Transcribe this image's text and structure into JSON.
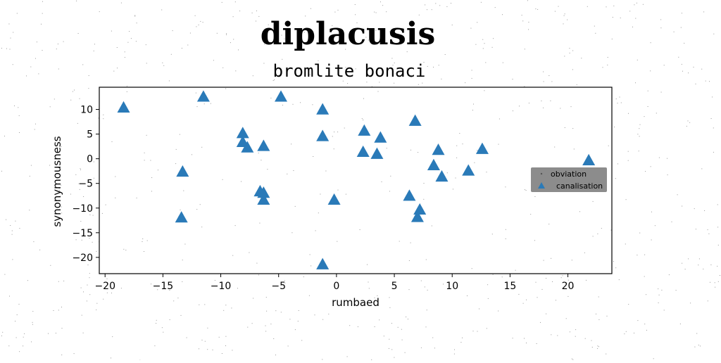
{
  "chart_data": {
    "type": "scatter",
    "title": "diplacusis",
    "subtitle": "bromlite bonaci",
    "xlabel": "rumbaed",
    "ylabel": "synonymousness",
    "xlim": [
      -20.5,
      23.8
    ],
    "ylim": [
      -23.3,
      14.5
    ],
    "xticks": [
      -20,
      -15,
      -10,
      -5,
      0,
      5,
      10,
      15,
      20
    ],
    "yticks": [
      10,
      5,
      0,
      -5,
      -10,
      -15,
      -20
    ],
    "xtick_labels": [
      "−20",
      "−15",
      "−10",
      "−5",
      "0",
      "5",
      "10",
      "15",
      "20"
    ],
    "ytick_labels": [
      "10",
      "5",
      "0",
      "−5",
      "−10",
      "−15",
      "−20"
    ],
    "grid": false,
    "legend": {
      "placement": "center-right",
      "background": "#8c8c8c",
      "entries": [
        "obviation",
        "canalisation"
      ]
    },
    "series": [
      {
        "name": "obviation",
        "marker": "point",
        "color": "#555555",
        "points": []
      },
      {
        "name": "canalisation",
        "marker": "triangle",
        "color": "#2a7ab8",
        "points": [
          [
            -18.4,
            10.4
          ],
          [
            -11.5,
            12.6
          ],
          [
            -4.8,
            12.6
          ],
          [
            -1.2,
            10.0
          ],
          [
            -8.1,
            5.2
          ],
          [
            -8.1,
            3.4
          ],
          [
            -7.7,
            2.3
          ],
          [
            -6.3,
            2.6
          ],
          [
            -1.2,
            4.6
          ],
          [
            -13.3,
            -2.6
          ],
          [
            -6.6,
            -6.6
          ],
          [
            -6.3,
            -6.9
          ],
          [
            -6.3,
            -8.3
          ],
          [
            -13.4,
            -11.9
          ],
          [
            -0.2,
            -8.3
          ],
          [
            -1.2,
            -21.4
          ],
          [
            2.4,
            5.7
          ],
          [
            3.8,
            4.3
          ],
          [
            2.3,
            1.4
          ],
          [
            3.5,
            1.0
          ],
          [
            6.8,
            7.7
          ],
          [
            8.8,
            1.8
          ],
          [
            8.4,
            -1.3
          ],
          [
            9.1,
            -3.6
          ],
          [
            11.4,
            -2.4
          ],
          [
            12.6,
            2.0
          ],
          [
            21.8,
            -0.3
          ],
          [
            6.3,
            -7.5
          ],
          [
            7.2,
            -10.3
          ],
          [
            7.0,
            -11.8
          ]
        ]
      }
    ]
  }
}
